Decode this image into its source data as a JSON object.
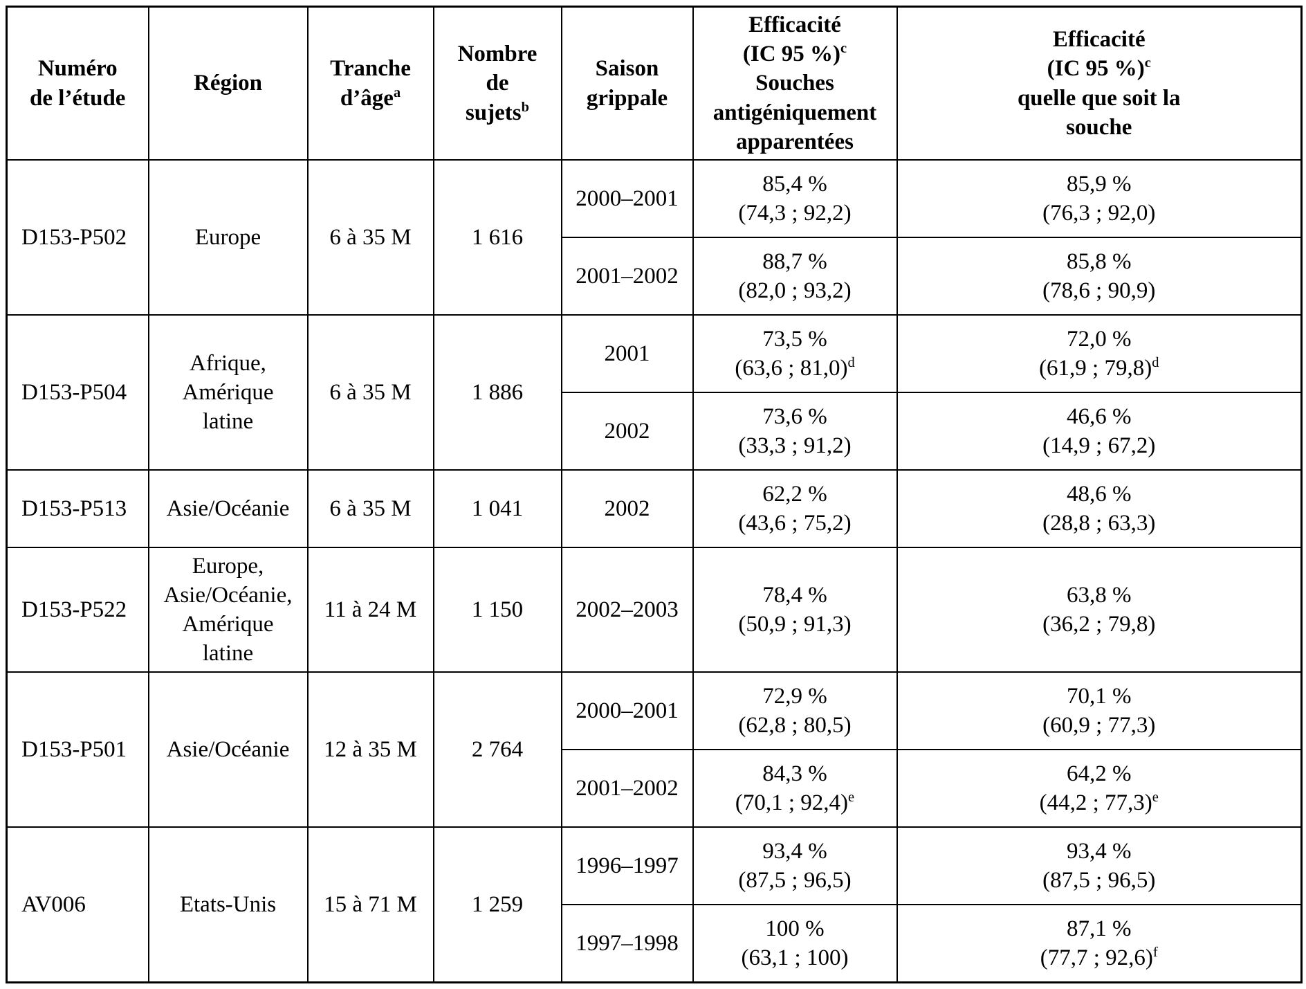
{
  "table": {
    "header": {
      "study": {
        "lines": [
          "Numéro",
          "de l’étude"
        ]
      },
      "region": {
        "lines": [
          "Région"
        ]
      },
      "age": {
        "lines": [
          "Tranche",
          "d’âge"
        ],
        "sup": "a"
      },
      "subjects": {
        "lines": [
          "Nombre",
          "de",
          "sujets"
        ],
        "sup": "b"
      },
      "season": {
        "lines": [
          "Saison",
          "grippale"
        ]
      },
      "eff_matched": {
        "top_lines": [
          "Efficacité",
          "(IC 95 %)"
        ],
        "sup": "c",
        "bottom_lines": [
          "Souches",
          "antigéniquement",
          "apparentées"
        ]
      },
      "eff_any": {
        "top_lines": [
          "Efficacité",
          "(IC 95 %)"
        ],
        "sup": "c",
        "bottom_lines": [
          "quelle que soit la",
          "souche"
        ]
      }
    },
    "studies": [
      {
        "id": "D153-P502",
        "region_lines": [
          "Europe"
        ],
        "age": "6 à 35 M",
        "subjects": "1 616",
        "seasons": [
          {
            "season": "2000–2001",
            "matched": {
              "value": "85,4 %",
              "ci": "(74,3 ; 92,2)"
            },
            "any": {
              "value": "85,9 %",
              "ci": "(76,3 ; 92,0)"
            }
          },
          {
            "season": "2001–2002",
            "matched": {
              "value": "88,7 %",
              "ci": "(82,0 ; 93,2)"
            },
            "any": {
              "value": "85,8 %",
              "ci": "(78,6 ; 90,9)"
            }
          }
        ]
      },
      {
        "id": "D153-P504",
        "region_lines": [
          "Afrique,",
          "Amérique",
          "latine"
        ],
        "age": "6 à 35 M",
        "subjects": "1 886",
        "seasons": [
          {
            "season": "2001",
            "matched": {
              "value": "73,5 %",
              "ci": "(63,6 ; 81,0)",
              "sup": "d"
            },
            "any": {
              "value": "72,0 %",
              "ci": "(61,9 ; 79,8)",
              "sup": "d"
            }
          },
          {
            "season": "2002",
            "matched": {
              "value": "73,6 %",
              "ci": "(33,3 ; 91,2)"
            },
            "any": {
              "value": "46,6 %",
              "ci": "(14,9 ; 67,2)"
            }
          }
        ]
      },
      {
        "id": "D153-P513",
        "region_lines": [
          "Asie/Océanie"
        ],
        "age": "6 à 35 M",
        "subjects": "1 041",
        "seasons": [
          {
            "season": "2002",
            "matched": {
              "value": "62,2 %",
              "ci": "(43,6 ; 75,2)"
            },
            "any": {
              "value": "48,6 %",
              "ci": "(28,8 ; 63,3)"
            }
          }
        ]
      },
      {
        "id": "D153-P522",
        "region_lines": [
          "Europe,",
          "Asie/Océanie,",
          "Amérique",
          "latine"
        ],
        "age": "11 à 24 M",
        "subjects": "1 150",
        "seasons": [
          {
            "season": "2002–2003",
            "matched": {
              "value": "78,4 %",
              "ci": "(50,9 ; 91,3)"
            },
            "any": {
              "value": "63,8 %",
              "ci": "(36,2 ; 79,8)"
            }
          }
        ]
      },
      {
        "id": "D153-P501",
        "region_lines": [
          "Asie/Océanie"
        ],
        "age": "12 à 35 M",
        "subjects": "2 764",
        "seasons": [
          {
            "season": "2000–2001",
            "matched": {
              "value": "72,9 %",
              "ci": "(62,8 ; 80,5)"
            },
            "any": {
              "value": "70,1 %",
              "ci": "(60,9 ; 77,3)"
            }
          },
          {
            "season": "2001–2002",
            "matched": {
              "value": "84,3 %",
              "ci": "(70,1 ; 92,4)",
              "sup": "e"
            },
            "any": {
              "value": "64,2 %",
              "ci": "(44,2 ; 77,3)",
              "sup": "e"
            }
          }
        ]
      },
      {
        "id": "AV006",
        "region_lines": [
          "Etats-Unis"
        ],
        "age": "15 à 71 M",
        "subjects": "1 259",
        "seasons": [
          {
            "season": "1996–1997",
            "matched": {
              "value": "93,4 %",
              "ci": "(87,5 ; 96,5)"
            },
            "any": {
              "value": "93,4 %",
              "ci": "(87,5 ; 96,5)"
            }
          },
          {
            "season": "1997–1998",
            "matched": {
              "value": "100 %",
              "ci": "(63,1 ; 100)"
            },
            "any": {
              "value": "87,1 %",
              "ci": "(77,7 ; 92,6)",
              "sup": "f"
            }
          }
        ]
      }
    ]
  }
}
